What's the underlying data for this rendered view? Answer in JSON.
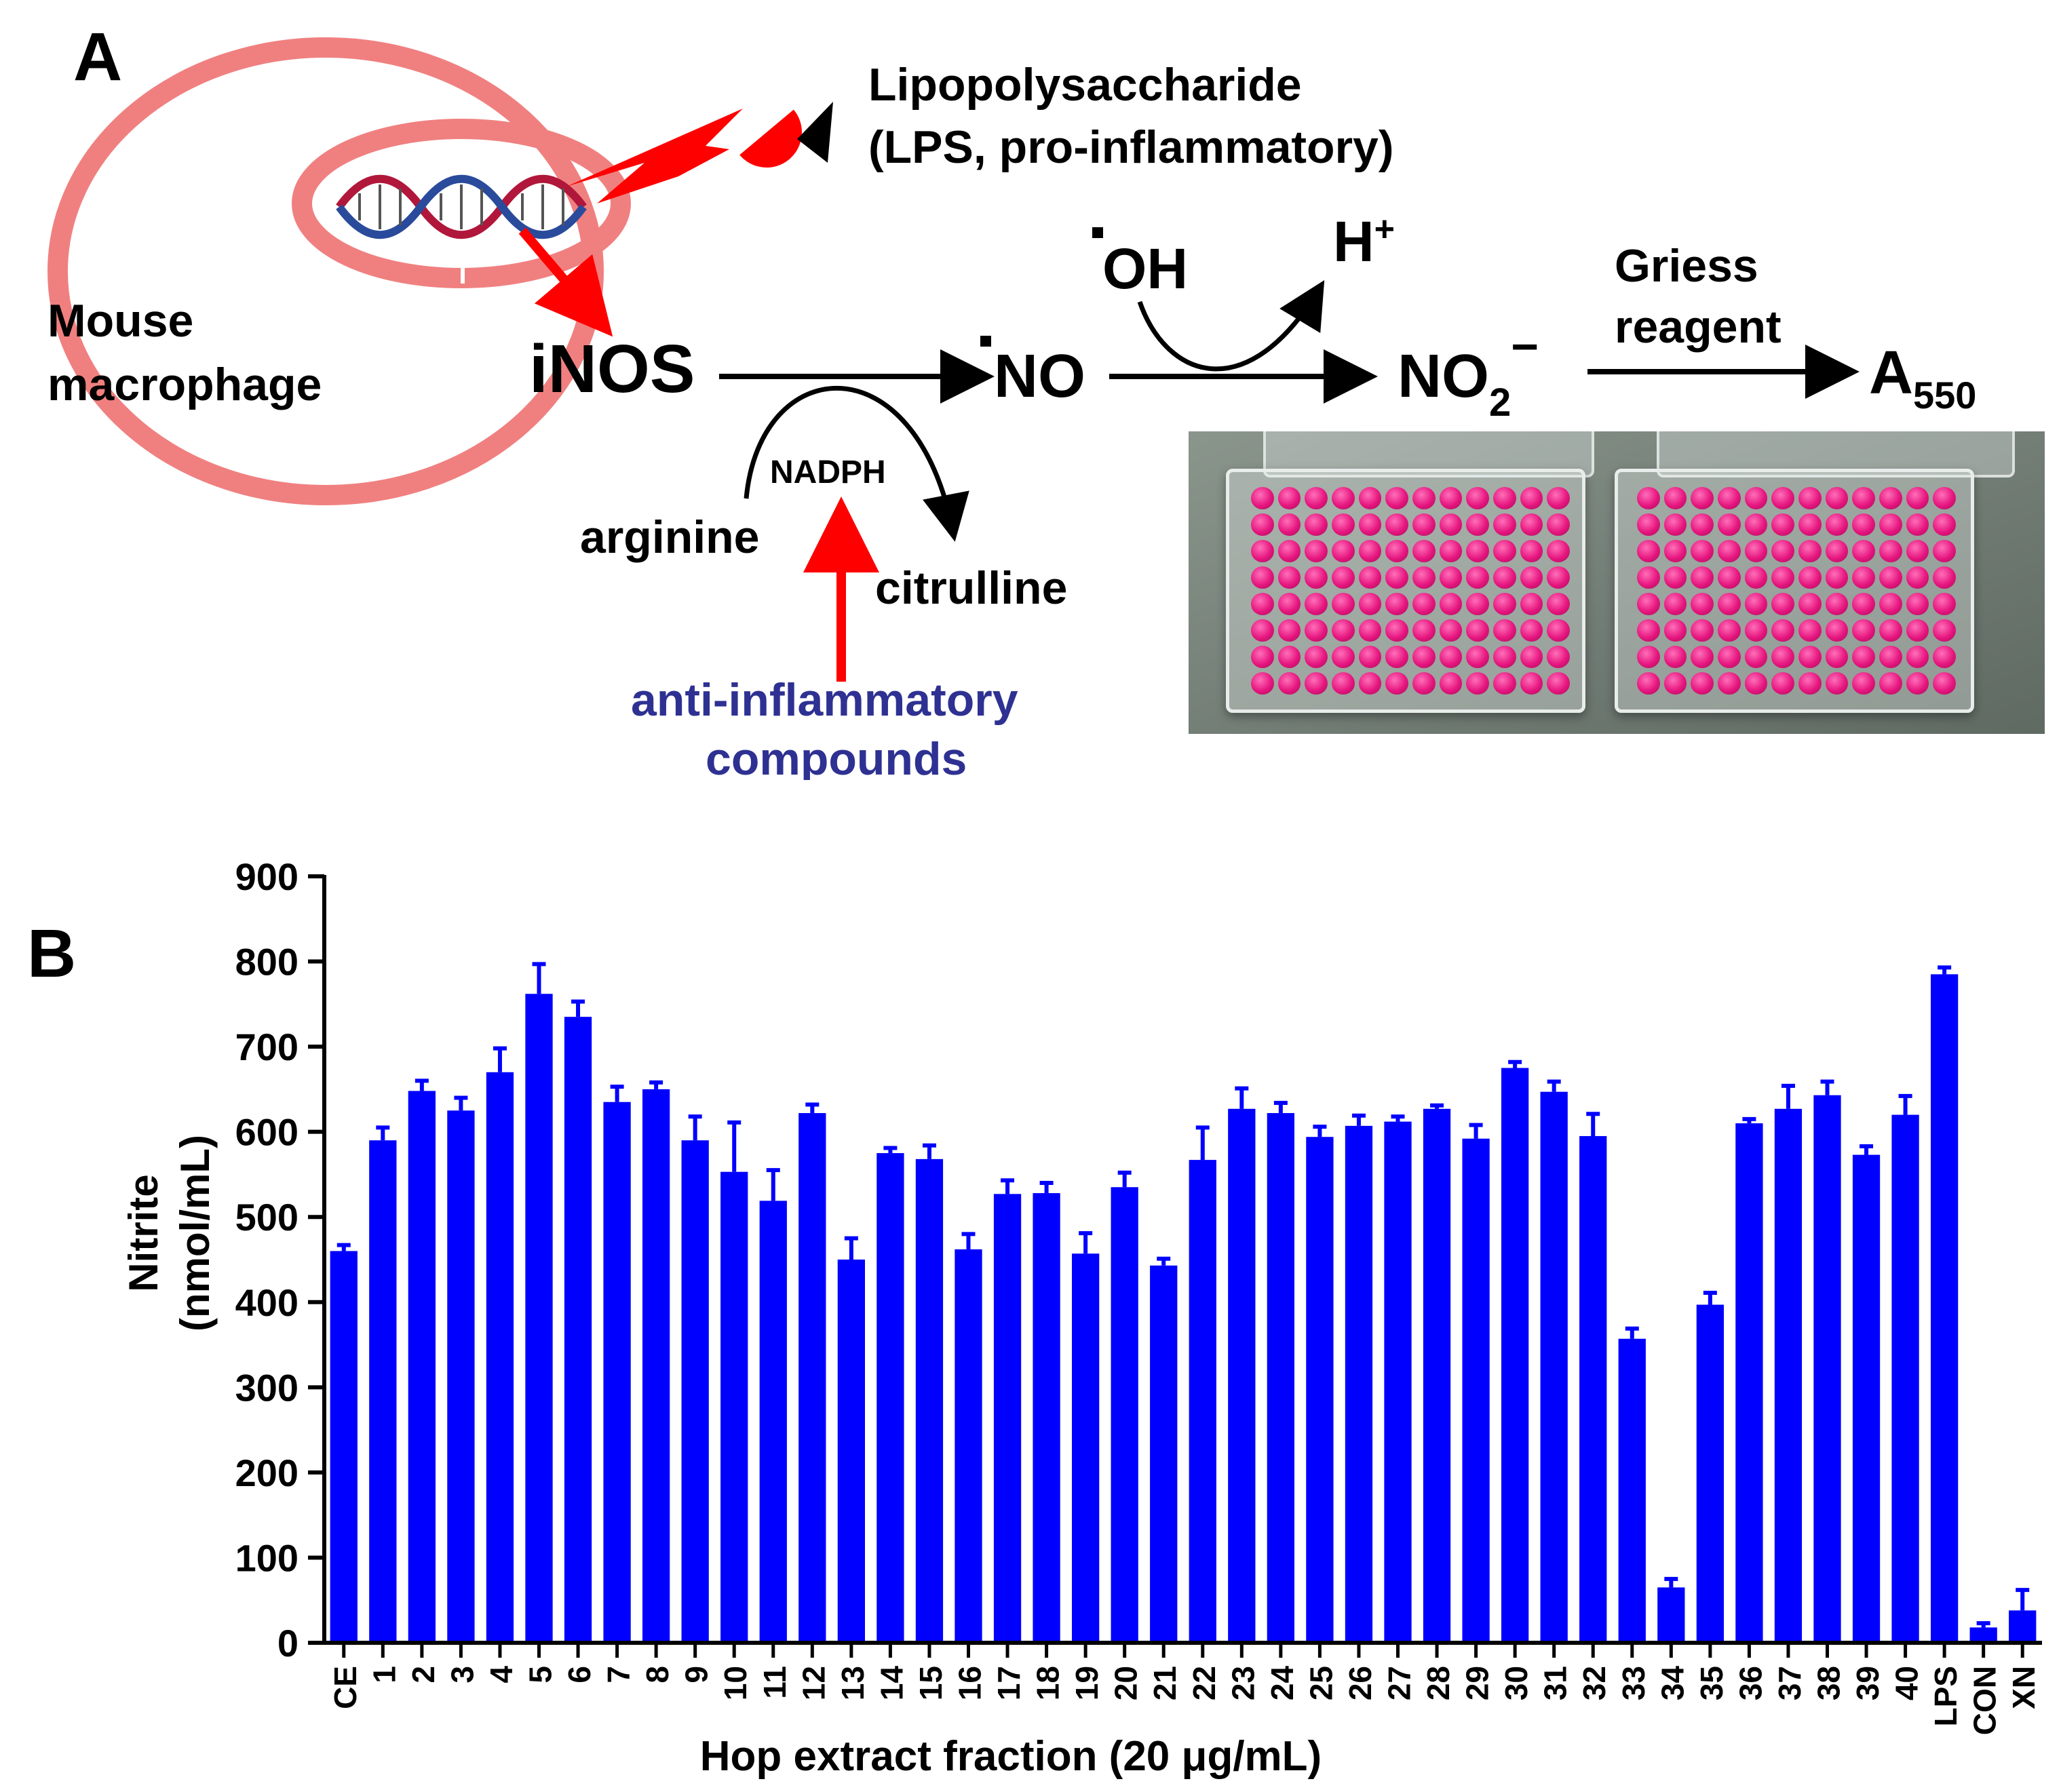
{
  "panel_a": {
    "label": "A",
    "lps_line1": "Lipopolysaccharide",
    "lps_line2": "(LPS, pro-inflammatory)",
    "cell_line1": "Mouse",
    "cell_line2": "macrophage",
    "inos": "iNOS",
    "no": "NO",
    "oh": "OH",
    "h_base": "H",
    "h_sup": "+",
    "no2_base": "NO",
    "no2_sub": "2",
    "no2_sup": "−",
    "griess_line1": "Griess",
    "griess_line2": "reagent",
    "a_base": "A",
    "a_sub": "550",
    "nadph": "NADPH",
    "arginine": "arginine",
    "citrulline": "citrulline",
    "anti_line1": "anti-inflammatory",
    "anti_line2": "compounds"
  },
  "colors": {
    "bar": "#0000ff",
    "ring": "#f08080",
    "arrow_red": "#ff0000",
    "anti_text": "#2e3192"
  },
  "chart_data": {
    "type": "bar",
    "panel_label": "B",
    "ylabel_line1": "Nitrite",
    "ylabel_line2": "(nmol/mL)",
    "xlabel": "Hop extract fraction (20 μg/mL)",
    "ylim": [
      0,
      900
    ],
    "yticks": [
      "0",
      "100",
      "200",
      "300",
      "400",
      "500",
      "600",
      "700",
      "800",
      "900"
    ],
    "categories": [
      "CE",
      "1",
      "2",
      "3",
      "4",
      "5",
      "6",
      "7",
      "8",
      "9",
      "10",
      "11",
      "12",
      "13",
      "14",
      "15",
      "16",
      "17",
      "18",
      "19",
      "20",
      "21",
      "22",
      "23",
      "24",
      "25",
      "26",
      "27",
      "28",
      "29",
      "30",
      "31",
      "32",
      "33",
      "34",
      "35",
      "36",
      "37",
      "38",
      "39",
      "40",
      "LPS",
      "CON",
      "XN"
    ],
    "values": [
      460,
      590,
      648,
      625,
      670,
      762,
      735,
      635,
      650,
      590,
      553,
      519,
      622,
      450,
      575,
      568,
      462,
      527,
      528,
      457,
      535,
      443,
      567,
      627,
      622,
      594,
      607,
      612,
      627,
      592,
      675,
      647,
      595,
      357,
      65,
      397,
      610,
      627,
      643,
      573,
      620,
      785,
      18,
      38
    ],
    "errors": [
      7,
      15,
      12,
      15,
      28,
      35,
      18,
      18,
      8,
      28,
      58,
      36,
      10,
      25,
      6,
      16,
      18,
      16,
      12,
      24,
      17,
      8,
      38,
      24,
      12,
      12,
      12,
      6,
      4,
      16,
      7,
      12,
      26,
      12,
      10,
      14,
      5,
      27,
      16,
      10,
      22,
      8,
      5,
      24
    ]
  }
}
